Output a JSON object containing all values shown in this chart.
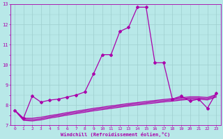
{
  "title": "",
  "xlabel": "Windchill (Refroidissement éolien,°C)",
  "xlim": [
    -0.5,
    23.5
  ],
  "ylim": [
    7,
    13
  ],
  "xticks": [
    0,
    1,
    2,
    3,
    4,
    5,
    6,
    7,
    8,
    9,
    10,
    11,
    12,
    13,
    14,
    15,
    16,
    17,
    18,
    19,
    20,
    21,
    22,
    23
  ],
  "yticks": [
    7,
    8,
    9,
    10,
    11,
    12,
    13
  ],
  "background_color": "#b8e8e8",
  "grid_color": "#9ecece",
  "line_color": "#aa00aa",
  "line1_x": [
    0,
    1,
    2,
    3,
    4,
    5,
    6,
    7,
    8,
    9,
    10,
    11,
    12,
    13,
    14,
    15,
    16,
    17,
    18,
    19,
    20,
    21,
    22,
    23
  ],
  "line1_y": [
    7.75,
    7.35,
    8.45,
    8.15,
    8.25,
    8.3,
    8.4,
    8.5,
    8.65,
    9.55,
    10.5,
    10.5,
    11.65,
    11.85,
    12.85,
    12.85,
    10.1,
    10.1,
    8.3,
    8.45,
    8.2,
    8.3,
    7.85,
    8.6
  ],
  "line2_x": [
    0,
    1,
    2,
    3,
    4,
    5,
    6,
    7,
    8,
    9,
    10,
    11,
    12,
    13,
    14,
    15,
    16,
    17,
    18,
    19,
    20,
    21,
    22,
    23
  ],
  "line2_y": [
    7.75,
    7.35,
    7.35,
    7.4,
    7.48,
    7.55,
    7.63,
    7.7,
    7.77,
    7.84,
    7.9,
    7.96,
    8.02,
    8.08,
    8.13,
    8.18,
    8.23,
    8.28,
    8.32,
    8.37,
    8.41,
    8.41,
    8.38,
    8.52
  ],
  "line3_x": [
    0,
    1,
    2,
    3,
    4,
    5,
    6,
    7,
    8,
    9,
    10,
    11,
    12,
    13,
    14,
    15,
    16,
    17,
    18,
    19,
    20,
    21,
    22,
    23
  ],
  "line3_y": [
    7.75,
    7.3,
    7.28,
    7.33,
    7.42,
    7.49,
    7.57,
    7.64,
    7.71,
    7.78,
    7.84,
    7.9,
    7.96,
    8.02,
    8.07,
    8.12,
    8.17,
    8.22,
    8.26,
    8.31,
    8.35,
    8.35,
    8.32,
    8.46
  ],
  "line4_x": [
    0,
    1,
    2,
    3,
    4,
    5,
    6,
    7,
    8,
    9,
    10,
    11,
    12,
    13,
    14,
    15,
    16,
    17,
    18,
    19,
    20,
    21,
    22,
    23
  ],
  "line4_y": [
    7.75,
    7.25,
    7.22,
    7.27,
    7.36,
    7.43,
    7.51,
    7.58,
    7.65,
    7.72,
    7.78,
    7.84,
    7.9,
    7.96,
    8.01,
    8.06,
    8.11,
    8.16,
    8.2,
    8.25,
    8.29,
    8.29,
    8.26,
    8.4
  ]
}
